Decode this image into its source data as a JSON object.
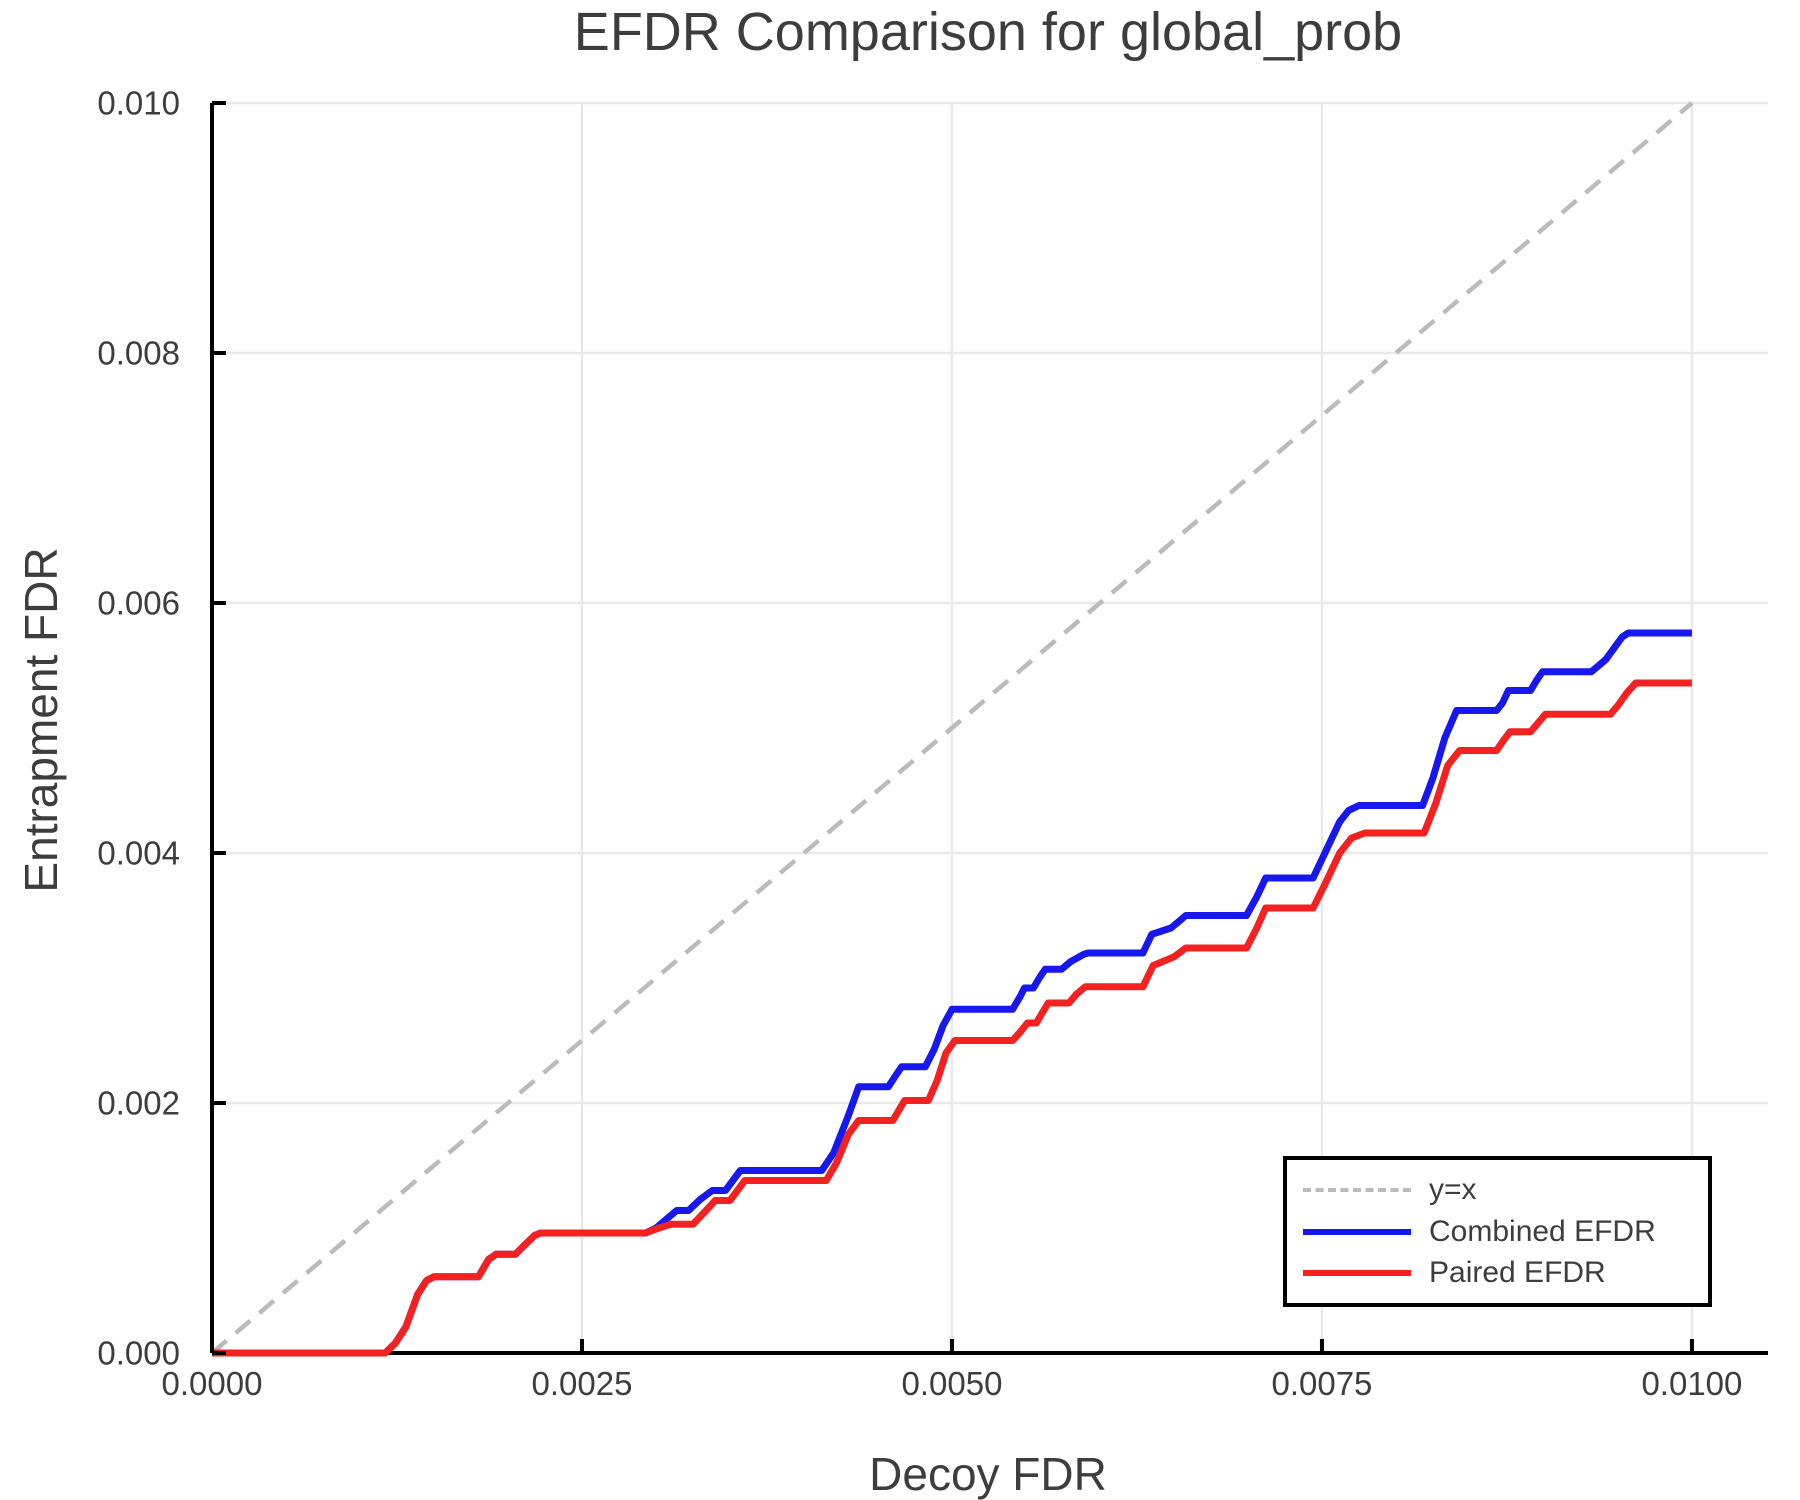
{
  "title": "EFDR Comparison for global_prob",
  "colors": {
    "combined": "#1717f0",
    "paired": "#f42121",
    "identity": "#bbbbbb",
    "grid": "#e9e9e9",
    "spine": "#000000",
    "text": "#3d3d3d",
    "background": "#ffffff"
  },
  "legend": {
    "items": [
      {
        "label": "y=x",
        "style": "dashed",
        "color": "#bbbbbb"
      },
      {
        "label": "Combined EFDR",
        "style": "solid",
        "color": "#1717f0"
      },
      {
        "label": "Paired EFDR",
        "style": "solid",
        "color": "#f42121"
      }
    ]
  },
  "chart_data": {
    "type": "line",
    "title": "EFDR Comparison for global_prob",
    "xlabel": "Decoy FDR",
    "ylabel": "Entrapment FDR",
    "xlim": [
      0,
      0.010514
    ],
    "ylim": [
      0,
      0.01
    ],
    "grid": true,
    "legend_position": "lower right",
    "x_ticks": [
      0,
      0.0025,
      0.005,
      0.0075,
      0.01
    ],
    "x_tick_labels": [
      "0.0000",
      "0.0025",
      "0.0050",
      "0.0075",
      "0.0100"
    ],
    "y_ticks": [
      0,
      0.002,
      0.004,
      0.006,
      0.008,
      0.01
    ],
    "y_tick_labels": [
      "0.000",
      "0.002",
      "0.004",
      "0.006",
      "0.008",
      "0.010"
    ],
    "series": [
      {
        "name": "y=x",
        "color": "#bbbbbb",
        "width": 4.5,
        "dash": "19 12",
        "points": [
          [
            0,
            0
          ],
          [
            0.01,
            0.01
          ]
        ]
      },
      {
        "name": "Combined EFDR",
        "color": "#1717f0",
        "width": 7,
        "dash": null,
        "points": [
          [
            0,
            0
          ],
          [
            0.00117,
            0
          ],
          [
            0.00124,
            8e-05
          ],
          [
            0.00131,
            0.00021
          ],
          [
            0.00139,
            0.00047
          ],
          [
            0.00145,
            0.00058
          ],
          [
            0.0015,
            0.00061
          ],
          [
            0.0018,
            0.00061
          ],
          [
            0.00187,
            0.00075
          ],
          [
            0.00192,
            0.00079
          ],
          [
            0.00205,
            0.00079
          ],
          [
            0.0021,
            0.00085
          ],
          [
            0.00218,
            0.00094
          ],
          [
            0.00222,
            0.00096
          ],
          [
            0.00293,
            0.00096
          ],
          [
            0.003,
            0.001
          ],
          [
            0.00308,
            0.00108
          ],
          [
            0.00314,
            0.00114
          ],
          [
            0.00322,
            0.00114
          ],
          [
            0.0033,
            0.00123
          ],
          [
            0.00338,
            0.0013
          ],
          [
            0.00347,
            0.0013
          ],
          [
            0.00352,
            0.00138
          ],
          [
            0.00357,
            0.00146
          ],
          [
            0.00412,
            0.00146
          ],
          [
            0.0042,
            0.0016
          ],
          [
            0.0043,
            0.0019
          ],
          [
            0.00437,
            0.00213
          ],
          [
            0.00457,
            0.00213
          ],
          [
            0.00462,
            0.00222
          ],
          [
            0.00466,
            0.00229
          ],
          [
            0.00482,
            0.00229
          ],
          [
            0.00488,
            0.00243
          ],
          [
            0.00494,
            0.00262
          ],
          [
            0.005,
            0.00275
          ],
          [
            0.00541,
            0.00275
          ],
          [
            0.00546,
            0.00285
          ],
          [
            0.00549,
            0.00292
          ],
          [
            0.00555,
            0.00292
          ],
          [
            0.00559,
            0.003
          ],
          [
            0.00563,
            0.00307
          ],
          [
            0.00574,
            0.00307
          ],
          [
            0.0058,
            0.00313
          ],
          [
            0.00589,
            0.00319
          ],
          [
            0.00592,
            0.0032
          ],
          [
            0.00629,
            0.0032
          ],
          [
            0.00635,
            0.00335
          ],
          [
            0.00648,
            0.0034
          ],
          [
            0.00653,
            0.00345
          ],
          [
            0.00658,
            0.0035
          ],
          [
            0.00699,
            0.0035
          ],
          [
            0.00706,
            0.00365
          ],
          [
            0.00712,
            0.0038
          ],
          [
            0.00744,
            0.0038
          ],
          [
            0.00752,
            0.004
          ],
          [
            0.00762,
            0.00425
          ],
          [
            0.00768,
            0.00434
          ],
          [
            0.00775,
            0.00438
          ],
          [
            0.00818,
            0.00438
          ],
          [
            0.00825,
            0.0046
          ],
          [
            0.00833,
            0.00492
          ],
          [
            0.00841,
            0.00514
          ],
          [
            0.00868,
            0.00514
          ],
          [
            0.00872,
            0.0052
          ],
          [
            0.00876,
            0.0053
          ],
          [
            0.00891,
            0.0053
          ],
          [
            0.00895,
            0.00538
          ],
          [
            0.00899,
            0.00545
          ],
          [
            0.00932,
            0.00545
          ],
          [
            0.00938,
            0.00551
          ],
          [
            0.00942,
            0.00555
          ],
          [
            0.00948,
            0.00565
          ],
          [
            0.00953,
            0.00573
          ],
          [
            0.00957,
            0.00576
          ],
          [
            0.01,
            0.00576
          ]
        ]
      },
      {
        "name": "Paired EFDR",
        "color": "#f42121",
        "width": 7,
        "dash": null,
        "points": [
          [
            0,
            0
          ],
          [
            0.00117,
            0
          ],
          [
            0.00124,
            8e-05
          ],
          [
            0.00131,
            0.00021
          ],
          [
            0.00139,
            0.00047
          ],
          [
            0.00145,
            0.00058
          ],
          [
            0.0015,
            0.00061
          ],
          [
            0.0018,
            0.00061
          ],
          [
            0.00187,
            0.00075
          ],
          [
            0.00192,
            0.00079
          ],
          [
            0.00205,
            0.00079
          ],
          [
            0.0021,
            0.00085
          ],
          [
            0.00218,
            0.00094
          ],
          [
            0.00222,
            0.00096
          ],
          [
            0.00293,
            0.00096
          ],
          [
            0.00302,
            0.001
          ],
          [
            0.0031,
            0.00103
          ],
          [
            0.00325,
            0.00103
          ],
          [
            0.00333,
            0.00113
          ],
          [
            0.0034,
            0.00122
          ],
          [
            0.0035,
            0.00122
          ],
          [
            0.00355,
            0.0013
          ],
          [
            0.0036,
            0.00138
          ],
          [
            0.00415,
            0.00138
          ],
          [
            0.00422,
            0.00152
          ],
          [
            0.0043,
            0.00175
          ],
          [
            0.00437,
            0.00186
          ],
          [
            0.0046,
            0.00186
          ],
          [
            0.00464,
            0.00194
          ],
          [
            0.00468,
            0.00202
          ],
          [
            0.00484,
            0.00202
          ],
          [
            0.0049,
            0.00218
          ],
          [
            0.00496,
            0.0024
          ],
          [
            0.00502,
            0.0025
          ],
          [
            0.00541,
            0.0025
          ],
          [
            0.00547,
            0.00258
          ],
          [
            0.00551,
            0.00264
          ],
          [
            0.00557,
            0.00264
          ],
          [
            0.00561,
            0.00272
          ],
          [
            0.00565,
            0.0028
          ],
          [
            0.00579,
            0.0028
          ],
          [
            0.00584,
            0.00287
          ],
          [
            0.0059,
            0.00293
          ],
          [
            0.00629,
            0.00293
          ],
          [
            0.00636,
            0.0031
          ],
          [
            0.0065,
            0.00317
          ],
          [
            0.00658,
            0.00324
          ],
          [
            0.00699,
            0.00324
          ],
          [
            0.00706,
            0.0034
          ],
          [
            0.00712,
            0.00356
          ],
          [
            0.00744,
            0.00356
          ],
          [
            0.00752,
            0.00375
          ],
          [
            0.00762,
            0.004
          ],
          [
            0.0077,
            0.00412
          ],
          [
            0.00779,
            0.00416
          ],
          [
            0.00819,
            0.00416
          ],
          [
            0.00827,
            0.0044
          ],
          [
            0.00835,
            0.0047
          ],
          [
            0.00843,
            0.00482
          ],
          [
            0.00868,
            0.00482
          ],
          [
            0.00872,
            0.00489
          ],
          [
            0.00877,
            0.00497
          ],
          [
            0.00891,
            0.00497
          ],
          [
            0.00896,
            0.00504
          ],
          [
            0.00901,
            0.00511
          ],
          [
            0.00945,
            0.00511
          ],
          [
            0.0095,
            0.00518
          ],
          [
            0.00956,
            0.00528
          ],
          [
            0.00962,
            0.00536
          ],
          [
            0.01,
            0.00536
          ]
        ]
      }
    ]
  }
}
